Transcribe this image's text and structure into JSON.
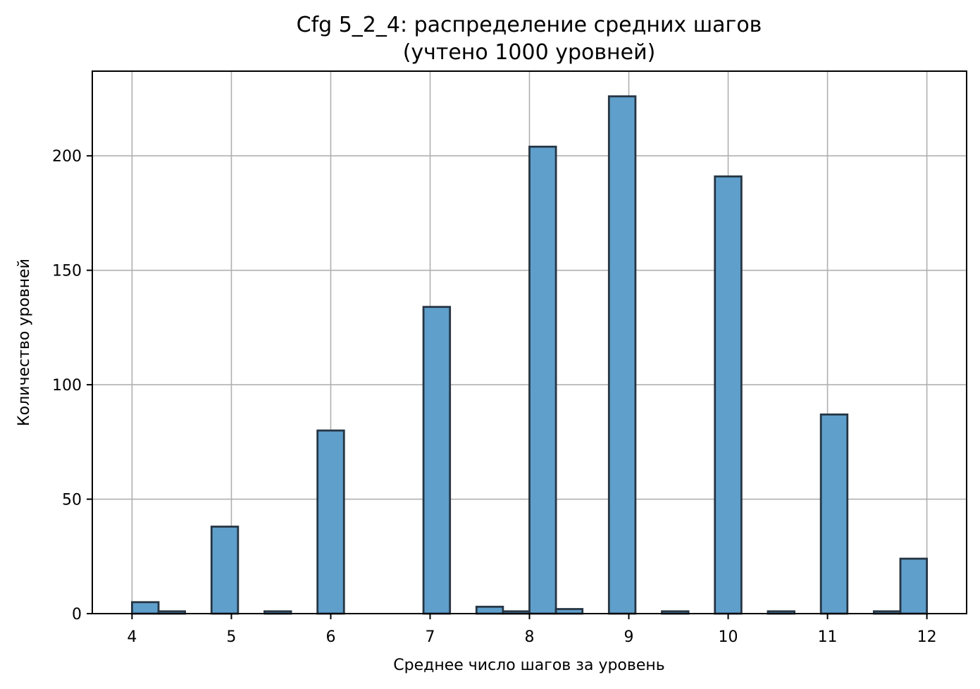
{
  "chart_data": {
    "type": "bar",
    "title": "Cfg 5_2_4: распределение средних шагов",
    "subtitle": "(учтено 1000 уровней)",
    "xlabel": "Среднее число шагов за уровень",
    "ylabel": "Количество уровней",
    "xlim": [
      3.6,
      12.4
    ],
    "ylim": [
      0,
      237
    ],
    "xticks": [
      4,
      5,
      6,
      7,
      8,
      9,
      10,
      11,
      12
    ],
    "yticks": [
      0,
      50,
      100,
      150,
      200
    ],
    "bin_width": 0.2667,
    "bins": [
      {
        "x0": 4.0,
        "x1": 4.2667,
        "value": 5
      },
      {
        "x0": 4.2667,
        "x1": 4.5333,
        "value": 1
      },
      {
        "x0": 4.8,
        "x1": 5.0667,
        "value": 38
      },
      {
        "x0": 5.3333,
        "x1": 5.6,
        "value": 1
      },
      {
        "x0": 5.8667,
        "x1": 6.1333,
        "value": 80
      },
      {
        "x0": 6.9333,
        "x1": 7.2,
        "value": 134
      },
      {
        "x0": 7.4667,
        "x1": 7.7333,
        "value": 3
      },
      {
        "x0": 7.7333,
        "x1": 8.0,
        "value": 1
      },
      {
        "x0": 8.0,
        "x1": 8.2667,
        "value": 204
      },
      {
        "x0": 8.2667,
        "x1": 8.5333,
        "value": 2
      },
      {
        "x0": 8.8,
        "x1": 9.0667,
        "value": 226
      },
      {
        "x0": 9.3333,
        "x1": 9.6,
        "value": 1
      },
      {
        "x0": 9.8667,
        "x1": 10.1333,
        "value": 191
      },
      {
        "x0": 10.4,
        "x1": 10.6667,
        "value": 1
      },
      {
        "x0": 10.9333,
        "x1": 11.2,
        "value": 87
      },
      {
        "x0": 11.4667,
        "x1": 11.7333,
        "value": 1
      },
      {
        "x0": 11.7333,
        "x1": 12.0,
        "value": 24
      }
    ],
    "grid": true,
    "colors": {
      "bar_fill": "#5f9fcb",
      "bar_edge": "#263544",
      "grid": "#b0b0b0"
    }
  }
}
